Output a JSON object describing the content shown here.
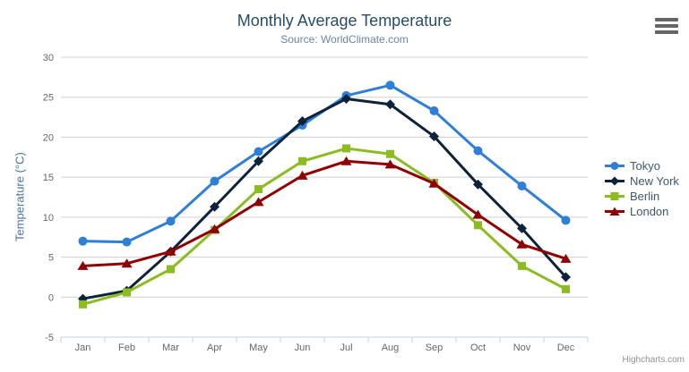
{
  "header": {
    "title": "Monthly Average Temperature",
    "subtitle": "Source: WorldClimate.com"
  },
  "export_menu": {
    "icon": "hamburger-icon"
  },
  "credits": {
    "label": "Highcharts.com"
  },
  "colors": {
    "title": "#274b6d",
    "subtitle": "#6d869f",
    "axis_title": "#4d759e",
    "axis_label": "#666666",
    "legend_text": "#3e576f",
    "gridline": "#d0d0d0",
    "x_axis_line": "#c0d0e0",
    "credits_text": "#909090"
  },
  "chart_data": {
    "type": "line",
    "title": "Monthly Average Temperature",
    "subtitle": "Source: WorldClimate.com",
    "xlabel": "",
    "ylabel": "Temperature (°C)",
    "ylim": [
      -5,
      30
    ],
    "yticks": [
      30,
      25,
      20,
      15,
      10,
      5,
      0,
      -5
    ],
    "grid": true,
    "legend_position": "right",
    "categories": [
      "Jan",
      "Feb",
      "Mar",
      "Apr",
      "May",
      "Jun",
      "Jul",
      "Aug",
      "Sep",
      "Oct",
      "Nov",
      "Dec"
    ],
    "series": [
      {
        "name": "Tokyo",
        "color": "#2f7ed8",
        "marker": "circle",
        "values": [
          7.0,
          6.9,
          9.5,
          14.5,
          18.2,
          21.5,
          25.2,
          26.5,
          23.3,
          18.3,
          13.9,
          9.6
        ]
      },
      {
        "name": "New York",
        "color": "#0d233a",
        "marker": "diamond",
        "values": [
          -0.2,
          0.8,
          5.7,
          11.3,
          17.0,
          22.0,
          24.8,
          24.1,
          20.1,
          14.1,
          8.6,
          2.5
        ]
      },
      {
        "name": "Berlin",
        "color": "#8bbc21",
        "marker": "square",
        "values": [
          -0.9,
          0.6,
          3.5,
          8.4,
          13.5,
          17.0,
          18.6,
          17.9,
          14.3,
          9.0,
          3.9,
          1.0
        ]
      },
      {
        "name": "London",
        "color": "#910000",
        "marker": "triangle",
        "values": [
          3.9,
          4.2,
          5.7,
          8.5,
          11.9,
          15.2,
          17.0,
          16.6,
          14.2,
          10.3,
          6.6,
          4.8
        ]
      }
    ]
  }
}
